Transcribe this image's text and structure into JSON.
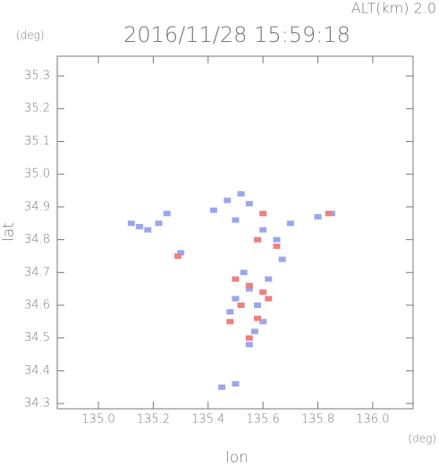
{
  "chart_data": {
    "type": "scatter",
    "title": "2016/11/28 15:59:18",
    "subtitle": "ALT(km) 2.0",
    "x_label": "lon",
    "y_label": "lat",
    "x_unit": "(deg)",
    "y_unit": "(deg)",
    "xlim": [
      134.85,
      136.147
    ],
    "ylim": [
      34.284,
      35.36
    ],
    "xticks": [
      {
        "value": 135,
        "label": "135.0"
      },
      135.2,
      135.4,
      135.6,
      135.8,
      {
        "value": 136,
        "label": "136.0"
      }
    ],
    "yticks": [
      34.3,
      34.4,
      34.5,
      34.6,
      34.7,
      34.8,
      34.9,
      {
        "value": 35,
        "label": "35.0"
      },
      35.1,
      35.2,
      35.3
    ],
    "series": [
      {
        "color": "#9aa6ee",
        "x": [
          135.12,
          135.15,
          135.18,
          135.22,
          135.25,
          135.42,
          135.47,
          135.52,
          135.55,
          135.5,
          135.6,
          135.65,
          135.7,
          135.8,
          135.85,
          135.53,
          135.55,
          135.58,
          135.6,
          135.57,
          135.62,
          135.5,
          135.48,
          135.55,
          135.45,
          135.5,
          135.3,
          135.67
        ],
        "y": [
          34.85,
          34.84,
          34.83,
          34.85,
          34.88,
          34.89,
          34.92,
          34.94,
          34.91,
          34.86,
          34.83,
          34.8,
          34.85,
          34.87,
          34.88,
          34.7,
          34.65,
          34.6,
          34.55,
          34.52,
          34.68,
          34.62,
          34.58,
          34.48,
          34.35,
          34.36,
          34.76,
          34.74
        ]
      },
      {
        "color": "#ee8080",
        "x": [
          135.55,
          135.6,
          135.52,
          135.58,
          135.55,
          135.62,
          135.5,
          135.65,
          135.58,
          135.48,
          135.29,
          135.84,
          135.6
        ],
        "y": [
          34.66,
          34.64,
          34.6,
          34.56,
          34.5,
          34.62,
          34.68,
          34.78,
          34.8,
          34.55,
          34.75,
          34.88,
          34.88
        ]
      }
    ]
  }
}
